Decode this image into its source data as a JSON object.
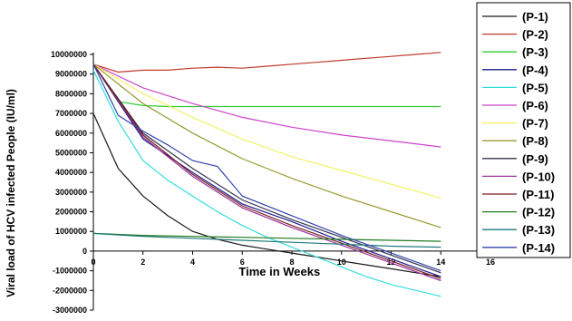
{
  "chart_data": {
    "type": "line",
    "xlabel": "Time in Weeks",
    "ylabel": "Viral load of HCV infected People (IU/ml)",
    "xlim": [
      0,
      16
    ],
    "ylim": [
      -3000000,
      10000000
    ],
    "x_ticks": [
      "0",
      "2",
      "4",
      "6",
      "8",
      "10",
      "12",
      "14",
      "16"
    ],
    "y_ticks": [
      "10000000",
      "9000000",
      "8000000",
      "7000000",
      "6000000",
      "5000000",
      "4000000",
      "3000000",
      "2000000",
      "1000000",
      "0",
      "-1000000",
      "-2000000",
      "-3000000"
    ],
    "grid": false,
    "legend_position": "right",
    "series": [
      {
        "name": "(P-1)",
        "color": "#1a1a1a",
        "x": [
          0,
          1,
          2,
          3,
          4,
          5,
          6,
          7,
          8,
          9,
          10,
          11,
          12,
          13,
          14
        ],
        "y": [
          7000000,
          4200000,
          2800000,
          1800000,
          1000000,
          600000,
          300000,
          100000,
          -100000,
          -300000,
          -500000,
          -700000,
          -900000,
          -1100000,
          -1300000
        ]
      },
      {
        "name": "(P-2)",
        "color": "#c0392b",
        "x": [
          0,
          1,
          2,
          3,
          4,
          5,
          6,
          7,
          8,
          9,
          10,
          11,
          12,
          13,
          14
        ],
        "y": [
          9500000,
          9100000,
          9200000,
          9200000,
          9300000,
          9350000,
          9300000,
          9400000,
          9500000,
          9600000,
          9700000,
          9800000,
          9900000,
          10000000,
          10100000
        ]
      },
      {
        "name": "(P-3)",
        "color": "#33cc33",
        "x": [
          0,
          1,
          2,
          3,
          4,
          6,
          8,
          10,
          12,
          14
        ],
        "y": [
          9500000,
          7600000,
          7400000,
          7350000,
          7350000,
          7350000,
          7350000,
          7350000,
          7350000,
          7350000
        ]
      },
      {
        "name": "(P-4)",
        "color": "#1c1c8f",
        "x": [
          0,
          2,
          4,
          6,
          8,
          10,
          12,
          14
        ],
        "y": [
          9500000,
          5700000,
          4000000,
          2400000,
          1500000,
          500000,
          -400000,
          -1300000
        ]
      },
      {
        "name": "(P-5)",
        "color": "#33dddd",
        "x": [
          0,
          1,
          2,
          3,
          4,
          5,
          6,
          7,
          8,
          9,
          10,
          11,
          12,
          13,
          14
        ],
        "y": [
          9200000,
          6600000,
          4600000,
          3600000,
          2800000,
          2000000,
          1300000,
          700000,
          200000,
          -300000,
          -800000,
          -1300000,
          -1700000,
          -2000000,
          -2300000
        ]
      },
      {
        "name": "(P-6)",
        "color": "#cc44cc",
        "x": [
          0,
          2,
          4,
          6,
          8,
          10,
          12,
          14
        ],
        "y": [
          9500000,
          8300000,
          7500000,
          6800000,
          6300000,
          5900000,
          5600000,
          5300000
        ]
      },
      {
        "name": "(P-7)",
        "color": "#f2f266",
        "x": [
          0,
          2,
          4,
          6,
          8,
          10,
          12,
          14
        ],
        "y": [
          9500000,
          8000000,
          6800000,
          5700000,
          4800000,
          4100000,
          3400000,
          2700000
        ]
      },
      {
        "name": "(P-8)",
        "color": "#999933",
        "x": [
          0,
          2,
          4,
          6,
          8,
          10,
          12,
          14
        ],
        "y": [
          9500000,
          7500000,
          6000000,
          4700000,
          3700000,
          2800000,
          2000000,
          1200000
        ]
      },
      {
        "name": "(P-9)",
        "color": "#33334d",
        "x": [
          0,
          2,
          4,
          6,
          8,
          10,
          12,
          14
        ],
        "y": [
          9500000,
          6000000,
          4200000,
          2600000,
          1600000,
          700000,
          -200000,
          -1100000
        ]
      },
      {
        "name": "(P-10)",
        "color": "#993399",
        "x": [
          0,
          2,
          4,
          6,
          8,
          10,
          12,
          14
        ],
        "y": [
          9500000,
          5800000,
          3800000,
          2200000,
          1200000,
          300000,
          -600000,
          -1500000
        ]
      },
      {
        "name": "(P-11)",
        "color": "#7a1f1f",
        "x": [
          0,
          2,
          4,
          6,
          8,
          10,
          12,
          14
        ],
        "y": [
          9500000,
          5900000,
          3900000,
          2300000,
          1300000,
          400000,
          -500000,
          -1400000
        ]
      },
      {
        "name": "(P-12)",
        "color": "#1f7a1f",
        "x": [
          0,
          2,
          4,
          6,
          8,
          10,
          12,
          14
        ],
        "y": [
          900000,
          800000,
          750000,
          700000,
          650000,
          600000,
          550000,
          500000
        ]
      },
      {
        "name": "(P-13)",
        "color": "#1f7a7a",
        "x": [
          0,
          2,
          4,
          6,
          8,
          10,
          12,
          14
        ],
        "y": [
          900000,
          750000,
          650000,
          550000,
          450000,
          350000,
          250000,
          200000
        ]
      },
      {
        "name": "(P-14)",
        "color": "#3344aa",
        "x": [
          0,
          1,
          2,
          3,
          4,
          5,
          6,
          8,
          10,
          12,
          14
        ],
        "y": [
          9500000,
          6900000,
          6100000,
          5400000,
          4600000,
          4300000,
          2800000,
          1800000,
          800000,
          -100000,
          -1000000
        ]
      }
    ]
  }
}
